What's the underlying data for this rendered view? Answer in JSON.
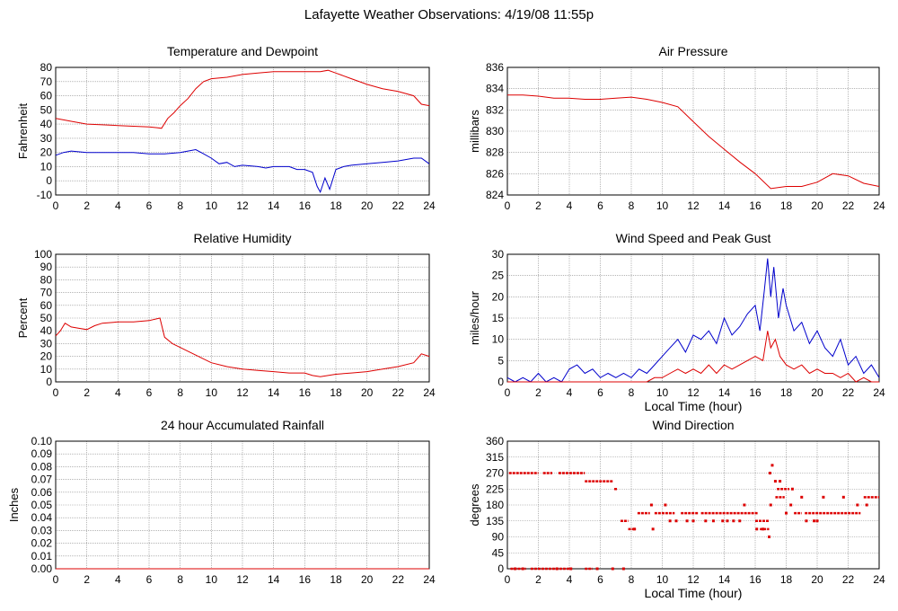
{
  "page": {
    "title": "Lafayette Weather Observations: 4/19/08 11:55p"
  },
  "colors": {
    "red": "#dd0000",
    "blue": "#0000cc",
    "grid": "#888888",
    "axis": "#000000"
  },
  "chart_data": [
    {
      "id": "temperature",
      "type": "line",
      "title": "Temperature and Dewpoint",
      "ylabel": "Fahrenheit",
      "xlabel": "",
      "xlim": [
        0,
        24
      ],
      "ylim": [
        -10,
        80
      ],
      "xticks": [
        0,
        2,
        4,
        6,
        8,
        10,
        12,
        14,
        16,
        18,
        20,
        22,
        24
      ],
      "yticks": [
        -10,
        0,
        10,
        20,
        30,
        40,
        50,
        60,
        70,
        80
      ],
      "grid": true,
      "series": [
        {
          "color": "#dd0000",
          "x": [
            0,
            1,
            2,
            3,
            4,
            5,
            6,
            6.5,
            6.8,
            7.2,
            7.6,
            8,
            8.5,
            9,
            9.5,
            10,
            11,
            12,
            13,
            14,
            15,
            16,
            17,
            17.5,
            18,
            19,
            20,
            21,
            22,
            23,
            23.5,
            24
          ],
          "y": [
            44,
            42,
            40,
            39.5,
            39,
            38.5,
            38,
            37.5,
            37,
            44,
            48,
            53,
            58,
            65,
            70,
            72,
            73,
            75,
            76,
            77,
            77,
            77,
            77,
            78,
            76,
            72,
            68,
            65,
            63,
            60,
            54,
            53
          ]
        },
        {
          "color": "#0000cc",
          "x": [
            0,
            0.5,
            1,
            2,
            3,
            4,
            5,
            6,
            7,
            8,
            8.5,
            9,
            9.5,
            10,
            10.5,
            11,
            11.5,
            12,
            13,
            13.5,
            14,
            15,
            15.5,
            16,
            16.5,
            16.8,
            17,
            17.3,
            17.6,
            18,
            18.5,
            19,
            20,
            21,
            22,
            23,
            23.5,
            24
          ],
          "y": [
            18,
            20,
            21,
            20,
            20,
            20,
            20,
            19,
            19,
            20,
            21,
            22,
            19,
            16,
            12,
            13,
            10,
            11,
            10,
            9,
            10,
            10,
            8,
            8,
            6,
            -4,
            -8,
            2,
            -6,
            8,
            10,
            11,
            12,
            13,
            14,
            16,
            16,
            12
          ]
        }
      ]
    },
    {
      "id": "pressure",
      "type": "line",
      "title": "Air Pressure",
      "ylabel": "millibars",
      "xlabel": "",
      "xlim": [
        0,
        24
      ],
      "ylim": [
        824,
        836
      ],
      "xticks": [
        0,
        2,
        4,
        6,
        8,
        10,
        12,
        14,
        16,
        18,
        20,
        22,
        24
      ],
      "yticks": [
        824,
        826,
        828,
        830,
        832,
        834,
        836
      ],
      "grid": true,
      "series": [
        {
          "color": "#dd0000",
          "x": [
            0,
            1,
            2,
            3,
            4,
            5,
            6,
            7,
            8,
            9,
            10,
            11,
            12,
            13,
            14,
            15,
            16,
            17,
            18,
            19,
            20,
            21,
            22,
            23,
            24
          ],
          "y": [
            833.4,
            833.4,
            833.3,
            833.1,
            833.1,
            833.0,
            833.0,
            833.1,
            833.2,
            833.0,
            832.7,
            832.3,
            830.9,
            829.5,
            828.3,
            827.1,
            826.0,
            824.6,
            824.8,
            824.8,
            825.2,
            826.0,
            825.8,
            825.1,
            824.8
          ]
        }
      ]
    },
    {
      "id": "humidity",
      "type": "line",
      "title": "Relative Humidity",
      "ylabel": "Percent",
      "xlabel": "",
      "xlim": [
        0,
        24
      ],
      "ylim": [
        0,
        100
      ],
      "xticks": [
        0,
        2,
        4,
        6,
        8,
        10,
        12,
        14,
        16,
        18,
        20,
        22,
        24
      ],
      "yticks": [
        0,
        10,
        20,
        30,
        40,
        50,
        60,
        70,
        80,
        90,
        100
      ],
      "grid": true,
      "series": [
        {
          "color": "#dd0000",
          "x": [
            0,
            0.3,
            0.6,
            1,
            1.5,
            2,
            2.5,
            3,
            4,
            5,
            6,
            6.7,
            7,
            7.5,
            8,
            8.5,
            9,
            10,
            11,
            12,
            13,
            14,
            15,
            16,
            16.5,
            17,
            18,
            19,
            20,
            21,
            22,
            23,
            23.5,
            24
          ],
          "y": [
            36,
            40,
            46,
            43,
            42,
            41,
            44,
            46,
            47,
            47,
            48,
            50,
            35,
            30,
            27,
            24,
            21,
            15,
            12,
            10,
            9,
            8,
            7,
            7,
            5,
            4,
            6,
            7,
            8,
            10,
            12,
            15,
            22,
            20
          ]
        }
      ]
    },
    {
      "id": "wind-speed",
      "type": "line",
      "title": "Wind Speed and Peak Gust",
      "ylabel": "miles/hour",
      "xlabel": "Local Time (hour)",
      "xlim": [
        0,
        24
      ],
      "ylim": [
        0,
        30
      ],
      "xticks": [
        0,
        2,
        4,
        6,
        8,
        10,
        12,
        14,
        16,
        18,
        20,
        22,
        24
      ],
      "yticks": [
        0,
        5,
        10,
        15,
        20,
        25,
        30
      ],
      "grid": true,
      "series": [
        {
          "color": "#0000cc",
          "x": [
            0,
            0.5,
            1,
            1.5,
            2,
            2.5,
            3,
            3.5,
            4,
            4.5,
            5,
            5.5,
            6,
            6.5,
            7,
            7.5,
            8,
            8.5,
            9,
            9.5,
            10,
            10.5,
            11,
            11.5,
            12,
            12.5,
            13,
            13.5,
            14,
            14.5,
            15,
            15.5,
            16,
            16.3,
            16.6,
            16.8,
            17,
            17.2,
            17.5,
            17.8,
            18,
            18.5,
            19,
            19.5,
            20,
            20.5,
            21,
            21.5,
            22,
            22.5,
            23,
            23.5,
            24
          ],
          "y": [
            1,
            0,
            1,
            0,
            2,
            0,
            1,
            0,
            3,
            4,
            2,
            3,
            1,
            2,
            1,
            2,
            1,
            3,
            2,
            4,
            6,
            8,
            10,
            7,
            11,
            10,
            12,
            9,
            15,
            11,
            13,
            16,
            18,
            12,
            22,
            29,
            20,
            27,
            15,
            22,
            18,
            12,
            14,
            9,
            12,
            8,
            6,
            10,
            4,
            6,
            2,
            4,
            1
          ]
        },
        {
          "color": "#dd0000",
          "x": [
            0,
            1,
            2,
            3,
            4,
            5,
            6,
            7,
            8,
            8.5,
            9,
            9.5,
            10,
            10.5,
            11,
            11.5,
            12,
            12.5,
            13,
            13.5,
            14,
            14.5,
            15,
            15.5,
            16,
            16.5,
            16.8,
            17,
            17.3,
            17.6,
            18,
            18.5,
            19,
            19.5,
            20,
            20.5,
            21,
            21.5,
            22,
            22.5,
            23,
            23.5,
            24
          ],
          "y": [
            0,
            0,
            0,
            0,
            0,
            0,
            0,
            0,
            0,
            0,
            0,
            1,
            1,
            2,
            3,
            2,
            3,
            2,
            4,
            2,
            4,
            3,
            4,
            5,
            6,
            5,
            12,
            8,
            10,
            6,
            4,
            3,
            4,
            2,
            3,
            2,
            2,
            1,
            2,
            0,
            1,
            0,
            0
          ]
        }
      ]
    },
    {
      "id": "rainfall",
      "type": "line",
      "title": "24 hour Accumulated Rainfall",
      "ylabel": "Inches",
      "xlabel": "",
      "xlim": [
        0,
        24
      ],
      "ylim": [
        0,
        0.1
      ],
      "xticks": [
        0,
        2,
        4,
        6,
        8,
        10,
        12,
        14,
        16,
        18,
        20,
        22,
        24
      ],
      "yticks": [
        "0.00",
        "0.01",
        "0.02",
        "0.03",
        "0.04",
        "0.05",
        "0.06",
        "0.07",
        "0.08",
        "0.09",
        "0.10"
      ],
      "grid": true,
      "series": [
        {
          "color": "#dd0000",
          "x": [
            0,
            24
          ],
          "y": [
            0,
            0
          ]
        }
      ]
    },
    {
      "id": "wind-direction",
      "type": "scatter",
      "title": "Wind Direction",
      "ylabel": "degrees",
      "xlabel": "Local Time (hour)",
      "xlim": [
        0,
        24
      ],
      "ylim": [
        0,
        360
      ],
      "xticks": [
        0,
        2,
        4,
        6,
        8,
        10,
        12,
        14,
        16,
        18,
        20,
        22,
        24
      ],
      "yticks": [
        0,
        45,
        90,
        135,
        180,
        225,
        270,
        315,
        360
      ],
      "grid": true,
      "series": [
        {
          "color": "#dd0000",
          "segments": [
            [
              0.1,
              2.0,
              270
            ],
            [
              2.3,
              2.9,
              270
            ],
            [
              3.3,
              5.0,
              270
            ],
            [
              5.0,
              6.8,
              247
            ],
            [
              6.9,
              7.1,
              225
            ],
            [
              7.3,
              7.8,
              135
            ],
            [
              7.8,
              8.3,
              112
            ],
            [
              8.4,
              9.2,
              157
            ],
            [
              9.5,
              10.8,
              157
            ],
            [
              11.2,
              12.3,
              157
            ],
            [
              12.5,
              16.2,
              157
            ],
            [
              16.0,
              16.9,
              135
            ],
            [
              16.3,
              16.9,
              112
            ],
            [
              17.3,
              17.9,
              202
            ],
            [
              17.4,
              18.2,
              225
            ],
            [
              18.5,
              19.0,
              157
            ],
            [
              19.2,
              22.8,
              157
            ],
            [
              23.0,
              24.0,
              202
            ],
            [
              0.2,
              1.2,
              0
            ],
            [
              1.5,
              4.0,
              0
            ],
            [
              5.0,
              5.5,
              0
            ]
          ],
          "points": [
            [
              0.5,
              0
            ],
            [
              1.0,
              0
            ],
            [
              3.2,
              0
            ],
            [
              4.1,
              0
            ],
            [
              5.8,
              0
            ],
            [
              6.8,
              0
            ],
            [
              7.5,
              0
            ],
            [
              8.2,
              112
            ],
            [
              9.3,
              180
            ],
            [
              9.4,
              112
            ],
            [
              10.2,
              180
            ],
            [
              10.5,
              135
            ],
            [
              10.9,
              135
            ],
            [
              11.6,
              135
            ],
            [
              12.0,
              135
            ],
            [
              12.8,
              135
            ],
            [
              13.3,
              135
            ],
            [
              13.9,
              135
            ],
            [
              14.2,
              135
            ],
            [
              14.6,
              135
            ],
            [
              15.0,
              135
            ],
            [
              15.3,
              180
            ],
            [
              16.1,
              112
            ],
            [
              16.5,
              112
            ],
            [
              16.9,
              90
            ],
            [
              16.95,
              270
            ],
            [
              17.1,
              292
            ],
            [
              17.0,
              180
            ],
            [
              17.3,
              247
            ],
            [
              17.6,
              247
            ],
            [
              18.0,
              157
            ],
            [
              18.4,
              225
            ],
            [
              18.3,
              180
            ],
            [
              19.0,
              202
            ],
            [
              19.3,
              135
            ],
            [
              19.8,
              135
            ],
            [
              20.0,
              135
            ],
            [
              20.4,
              202
            ],
            [
              21.7,
              202
            ],
            [
              22.6,
              180
            ],
            [
              23.2,
              180
            ]
          ]
        }
      ]
    }
  ]
}
